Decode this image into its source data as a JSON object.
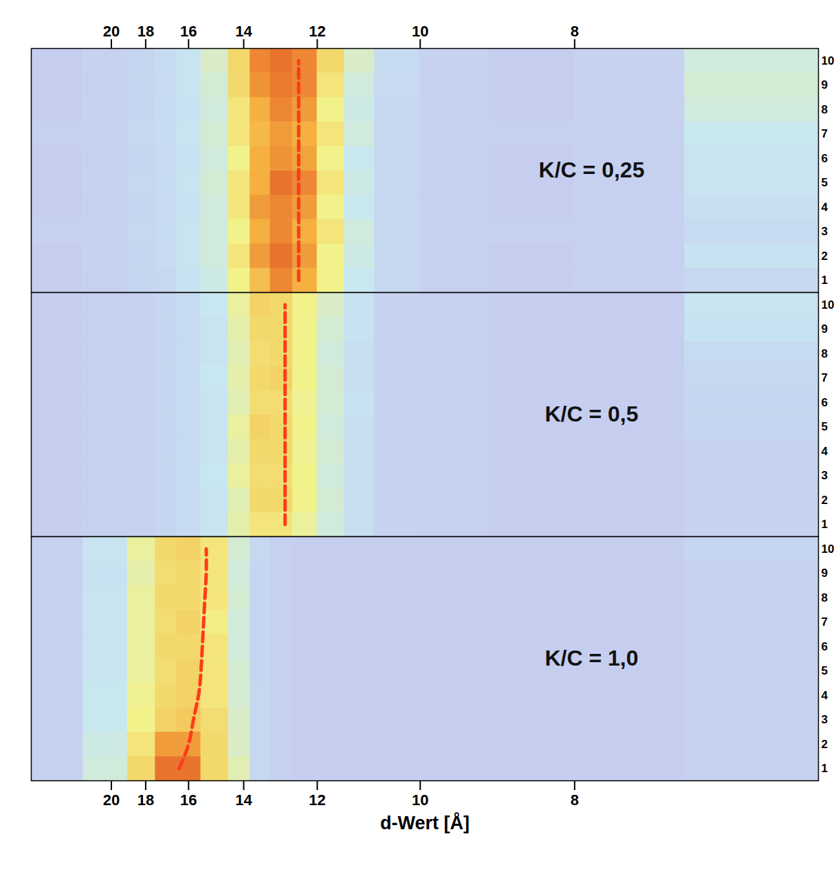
{
  "chart_data": {
    "type": "heatmap",
    "x_label": "d-Wert [Å]",
    "xlim": [
      27,
      6.08
    ],
    "xticks": [
      20,
      18,
      16,
      14,
      12,
      10,
      8
    ],
    "ylim": [
      0.5,
      10.5
    ],
    "yticks": [
      1,
      2,
      3,
      4,
      5,
      6,
      7,
      8,
      9,
      10
    ],
    "x_edges": [
      27,
      22,
      19,
      17.5,
      16.5,
      15.5,
      14.5,
      13.8,
      13.2,
      12.6,
      12.0,
      11.4,
      10.8,
      10,
      9,
      8,
      7,
      6.08
    ],
    "intensity_range": [
      0,
      1
    ],
    "panels": [
      {
        "label": "K/C = 0,25",
        "cells": [
          [
            0.05,
            0.07,
            0.1,
            0.12,
            0.2,
            0.28,
            0.5,
            0.7,
            0.85,
            0.75,
            0.5,
            0.25,
            0.12,
            0.07,
            0.05,
            0.06,
            0.12
          ],
          [
            0.05,
            0.08,
            0.1,
            0.14,
            0.22,
            0.3,
            0.55,
            0.8,
            0.9,
            0.8,
            0.5,
            0.28,
            0.12,
            0.07,
            0.05,
            0.06,
            0.2
          ],
          [
            0.06,
            0.08,
            0.12,
            0.15,
            0.22,
            0.3,
            0.5,
            0.75,
            0.85,
            0.75,
            0.55,
            0.3,
            0.12,
            0.08,
            0.06,
            0.07,
            0.15
          ],
          [
            0.05,
            0.07,
            0.1,
            0.14,
            0.2,
            0.3,
            0.55,
            0.8,
            0.85,
            0.8,
            0.5,
            0.25,
            0.12,
            0.07,
            0.05,
            0.06,
            0.18
          ],
          [
            0.05,
            0.08,
            0.12,
            0.15,
            0.22,
            0.32,
            0.55,
            0.75,
            0.9,
            0.85,
            0.55,
            0.28,
            0.12,
            0.07,
            0.05,
            0.07,
            0.22
          ],
          [
            0.05,
            0.07,
            0.1,
            0.14,
            0.2,
            0.3,
            0.5,
            0.75,
            0.82,
            0.78,
            0.5,
            0.25,
            0.12,
            0.07,
            0.05,
            0.07,
            0.22
          ],
          [
            0.06,
            0.08,
            0.12,
            0.16,
            0.22,
            0.32,
            0.55,
            0.72,
            0.8,
            0.75,
            0.55,
            0.3,
            0.12,
            0.08,
            0.06,
            0.07,
            0.25
          ],
          [
            0.05,
            0.08,
            0.1,
            0.15,
            0.2,
            0.3,
            0.55,
            0.75,
            0.85,
            0.8,
            0.5,
            0.28,
            0.12,
            0.07,
            0.05,
            0.08,
            0.3
          ],
          [
            0.05,
            0.07,
            0.1,
            0.14,
            0.22,
            0.32,
            0.6,
            0.82,
            0.88,
            0.85,
            0.55,
            0.3,
            0.14,
            0.08,
            0.05,
            0.08,
            0.32
          ],
          [
            0.05,
            0.08,
            0.1,
            0.15,
            0.22,
            0.35,
            0.6,
            0.85,
            0.9,
            0.85,
            0.6,
            0.35,
            0.15,
            0.08,
            0.05,
            0.08,
            0.3
          ]
        ],
        "peak_line": {
          "color": "#ff3b1a",
          "line_style": "dashed",
          "rows": [
            1,
            2,
            3,
            4,
            5,
            6,
            7,
            8,
            9,
            10
          ],
          "d": [
            12.45,
            12.45,
            12.45,
            12.45,
            12.45,
            12.45,
            12.45,
            12.45,
            12.45,
            12.45
          ]
        }
      },
      {
        "label": "K/C = 0,5",
        "cells": [
          [
            0.05,
            0.06,
            0.08,
            0.1,
            0.15,
            0.22,
            0.42,
            0.55,
            0.55,
            0.45,
            0.3,
            0.18,
            0.08,
            0.06,
            0.05,
            0.05,
            0.08
          ],
          [
            0.05,
            0.06,
            0.08,
            0.1,
            0.15,
            0.22,
            0.4,
            0.6,
            0.6,
            0.5,
            0.32,
            0.18,
            0.08,
            0.06,
            0.05,
            0.05,
            0.08
          ],
          [
            0.05,
            0.06,
            0.08,
            0.1,
            0.16,
            0.24,
            0.45,
            0.58,
            0.58,
            0.5,
            0.3,
            0.18,
            0.08,
            0.06,
            0.05,
            0.05,
            0.08
          ],
          [
            0.05,
            0.06,
            0.08,
            0.11,
            0.15,
            0.22,
            0.42,
            0.6,
            0.6,
            0.48,
            0.32,
            0.18,
            0.08,
            0.06,
            0.05,
            0.05,
            0.08
          ],
          [
            0.05,
            0.06,
            0.08,
            0.1,
            0.15,
            0.22,
            0.45,
            0.62,
            0.6,
            0.5,
            0.3,
            0.18,
            0.08,
            0.06,
            0.05,
            0.05,
            0.1
          ],
          [
            0.05,
            0.06,
            0.08,
            0.1,
            0.15,
            0.22,
            0.4,
            0.58,
            0.58,
            0.48,
            0.32,
            0.2,
            0.08,
            0.06,
            0.05,
            0.05,
            0.1
          ],
          [
            0.05,
            0.06,
            0.08,
            0.1,
            0.16,
            0.24,
            0.42,
            0.6,
            0.62,
            0.5,
            0.32,
            0.18,
            0.08,
            0.06,
            0.05,
            0.05,
            0.12
          ],
          [
            0.05,
            0.06,
            0.08,
            0.1,
            0.15,
            0.22,
            0.4,
            0.58,
            0.6,
            0.5,
            0.3,
            0.18,
            0.08,
            0.06,
            0.05,
            0.05,
            0.15
          ],
          [
            0.05,
            0.06,
            0.08,
            0.1,
            0.15,
            0.22,
            0.42,
            0.6,
            0.6,
            0.5,
            0.32,
            0.2,
            0.08,
            0.06,
            0.05,
            0.05,
            0.2
          ],
          [
            0.05,
            0.06,
            0.08,
            0.1,
            0.16,
            0.24,
            0.45,
            0.62,
            0.6,
            0.5,
            0.35,
            0.2,
            0.08,
            0.06,
            0.05,
            0.05,
            0.22
          ]
        ],
        "peak_line": {
          "color": "#ff3b1a",
          "line_style": "dashed",
          "rows": [
            1,
            2,
            3,
            4,
            5,
            6,
            7,
            8,
            9,
            10
          ],
          "d": [
            12.8,
            12.8,
            12.8,
            12.8,
            12.8,
            12.8,
            12.8,
            12.8,
            12.8,
            12.8
          ]
        }
      },
      {
        "label": "K/C = 1,0",
        "cells": [
          [
            0.06,
            0.3,
            0.6,
            0.9,
            0.9,
            0.6,
            0.4,
            0.12,
            0.06,
            0.05,
            0.05,
            0.05,
            0.05,
            0.05,
            0.05,
            0.05,
            0.06
          ],
          [
            0.06,
            0.28,
            0.55,
            0.8,
            0.8,
            0.6,
            0.35,
            0.12,
            0.06,
            0.05,
            0.05,
            0.05,
            0.05,
            0.05,
            0.05,
            0.05,
            0.06
          ],
          [
            0.06,
            0.25,
            0.5,
            0.62,
            0.65,
            0.58,
            0.35,
            0.12,
            0.06,
            0.05,
            0.05,
            0.05,
            0.05,
            0.05,
            0.05,
            0.05,
            0.06
          ],
          [
            0.06,
            0.25,
            0.48,
            0.6,
            0.62,
            0.55,
            0.32,
            0.12,
            0.06,
            0.05,
            0.05,
            0.05,
            0.05,
            0.05,
            0.05,
            0.05,
            0.06
          ],
          [
            0.06,
            0.22,
            0.45,
            0.58,
            0.62,
            0.55,
            0.32,
            0.1,
            0.06,
            0.05,
            0.05,
            0.05,
            0.05,
            0.05,
            0.05,
            0.05,
            0.06
          ],
          [
            0.06,
            0.22,
            0.45,
            0.6,
            0.6,
            0.55,
            0.3,
            0.1,
            0.06,
            0.05,
            0.05,
            0.05,
            0.05,
            0.05,
            0.05,
            0.05,
            0.06
          ],
          [
            0.06,
            0.22,
            0.45,
            0.58,
            0.62,
            0.52,
            0.3,
            0.1,
            0.06,
            0.05,
            0.05,
            0.05,
            0.05,
            0.05,
            0.05,
            0.05,
            0.06
          ],
          [
            0.06,
            0.22,
            0.45,
            0.6,
            0.6,
            0.55,
            0.32,
            0.1,
            0.06,
            0.05,
            0.05,
            0.05,
            0.05,
            0.05,
            0.05,
            0.05,
            0.06
          ],
          [
            0.06,
            0.2,
            0.42,
            0.58,
            0.6,
            0.55,
            0.3,
            0.1,
            0.06,
            0.05,
            0.05,
            0.05,
            0.05,
            0.05,
            0.05,
            0.05,
            0.08
          ],
          [
            0.06,
            0.22,
            0.45,
            0.6,
            0.62,
            0.55,
            0.32,
            0.12,
            0.06,
            0.05,
            0.05,
            0.05,
            0.05,
            0.05,
            0.05,
            0.05,
            0.1
          ]
        ],
        "peak_line": {
          "color": "#ff3b1a",
          "line_style": "dashed",
          "rows": [
            1,
            2,
            3,
            4,
            5,
            6,
            7,
            8,
            9,
            10
          ],
          "d": [
            16.4,
            16.0,
            15.8,
            15.6,
            15.5,
            15.45,
            15.4,
            15.35,
            15.3,
            15.3
          ]
        }
      }
    ]
  }
}
